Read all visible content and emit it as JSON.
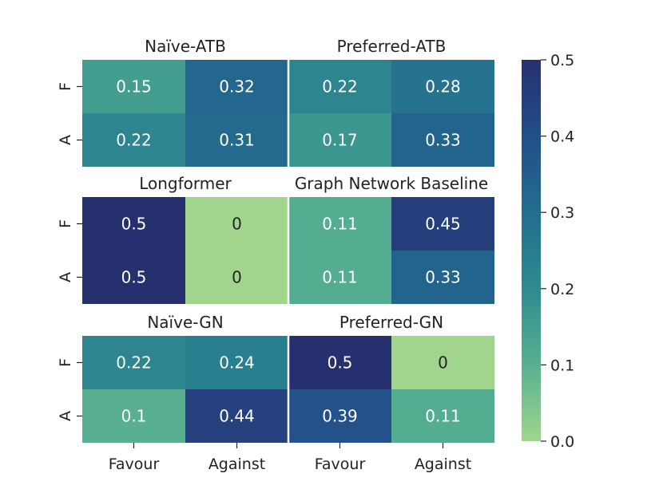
{
  "chart_data": {
    "type": "heatmap",
    "rows": [
      "F",
      "A"
    ],
    "columns": [
      "Favour",
      "Against"
    ],
    "colorbar": {
      "min": 0.0,
      "max": 0.5,
      "ticks": [
        "0.0",
        "0.1",
        "0.2",
        "0.3",
        "0.4",
        "0.5"
      ]
    },
    "panels": [
      {
        "title": "Naïve-ATB",
        "values": [
          [
            0.15,
            0.32
          ],
          [
            0.22,
            0.31
          ]
        ],
        "labels": [
          [
            "0.15",
            "0.32"
          ],
          [
            "0.22",
            "0.31"
          ]
        ]
      },
      {
        "title": "Preferred-ATB",
        "values": [
          [
            0.22,
            0.28
          ],
          [
            0.17,
            0.33
          ]
        ],
        "labels": [
          [
            "0.22",
            "0.28"
          ],
          [
            "0.17",
            "0.33"
          ]
        ]
      },
      {
        "title": "Longformer",
        "values": [
          [
            0.5,
            0
          ],
          [
            0.5,
            0
          ]
        ],
        "labels": [
          [
            "0.5",
            "0"
          ],
          [
            "0.5",
            "0"
          ]
        ]
      },
      {
        "title": "Graph Network Baseline",
        "values": [
          [
            0.11,
            0.45
          ],
          [
            0.11,
            0.33
          ]
        ],
        "labels": [
          [
            "0.11",
            "0.45"
          ],
          [
            "0.11",
            "0.33"
          ]
        ]
      },
      {
        "title": "Naïve-GN",
        "values": [
          [
            0.22,
            0.24
          ],
          [
            0.1,
            0.44
          ]
        ],
        "labels": [
          [
            "0.22",
            "0.24"
          ],
          [
            "0.1",
            "0.44"
          ]
        ]
      },
      {
        "title": "Preferred-GN",
        "values": [
          [
            0.5,
            0
          ],
          [
            0.39,
            0.11
          ]
        ],
        "labels": [
          [
            "0.5",
            "0"
          ],
          [
            "0.39",
            "0.11"
          ]
        ]
      }
    ],
    "colormap": [
      "#a1d58e",
      "#58b091",
      "#2e8b8f",
      "#236d8f",
      "#234e88",
      "#27306f"
    ]
  }
}
